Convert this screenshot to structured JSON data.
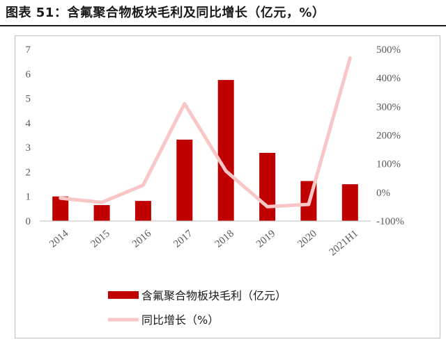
{
  "header": {
    "title": "图表 51：含氟聚合物板块毛利及同比增长（亿元，%）"
  },
  "chart_data": {
    "type": "bar",
    "categories": [
      "2014",
      "2015",
      "2016",
      "2017",
      "2018",
      "2019",
      "2020",
      "2021H1"
    ],
    "series": [
      {
        "name": "含氟聚合物板块毛利（亿元）",
        "type": "bar",
        "axis": "left",
        "values": [
          1.0,
          0.65,
          0.82,
          3.32,
          5.75,
          2.78,
          1.63,
          1.5
        ],
        "color": "#c00000"
      },
      {
        "name": "同比增长（%）",
        "type": "line",
        "axis": "right",
        "values": [
          -20,
          -35,
          25,
          310,
          75,
          -50,
          -42,
          470
        ],
        "color": "#f8c6c6"
      }
    ],
    "y_left": {
      "min": 0,
      "max": 7,
      "ticks": [
        "0",
        "1",
        "2",
        "3",
        "4",
        "5",
        "6",
        "7"
      ]
    },
    "y_right": {
      "min": -100,
      "max": 500,
      "ticks": [
        "-100%",
        "0%",
        "100%",
        "200%",
        "300%",
        "400%",
        "500%"
      ]
    },
    "grid": false,
    "legend_position": "bottom"
  }
}
